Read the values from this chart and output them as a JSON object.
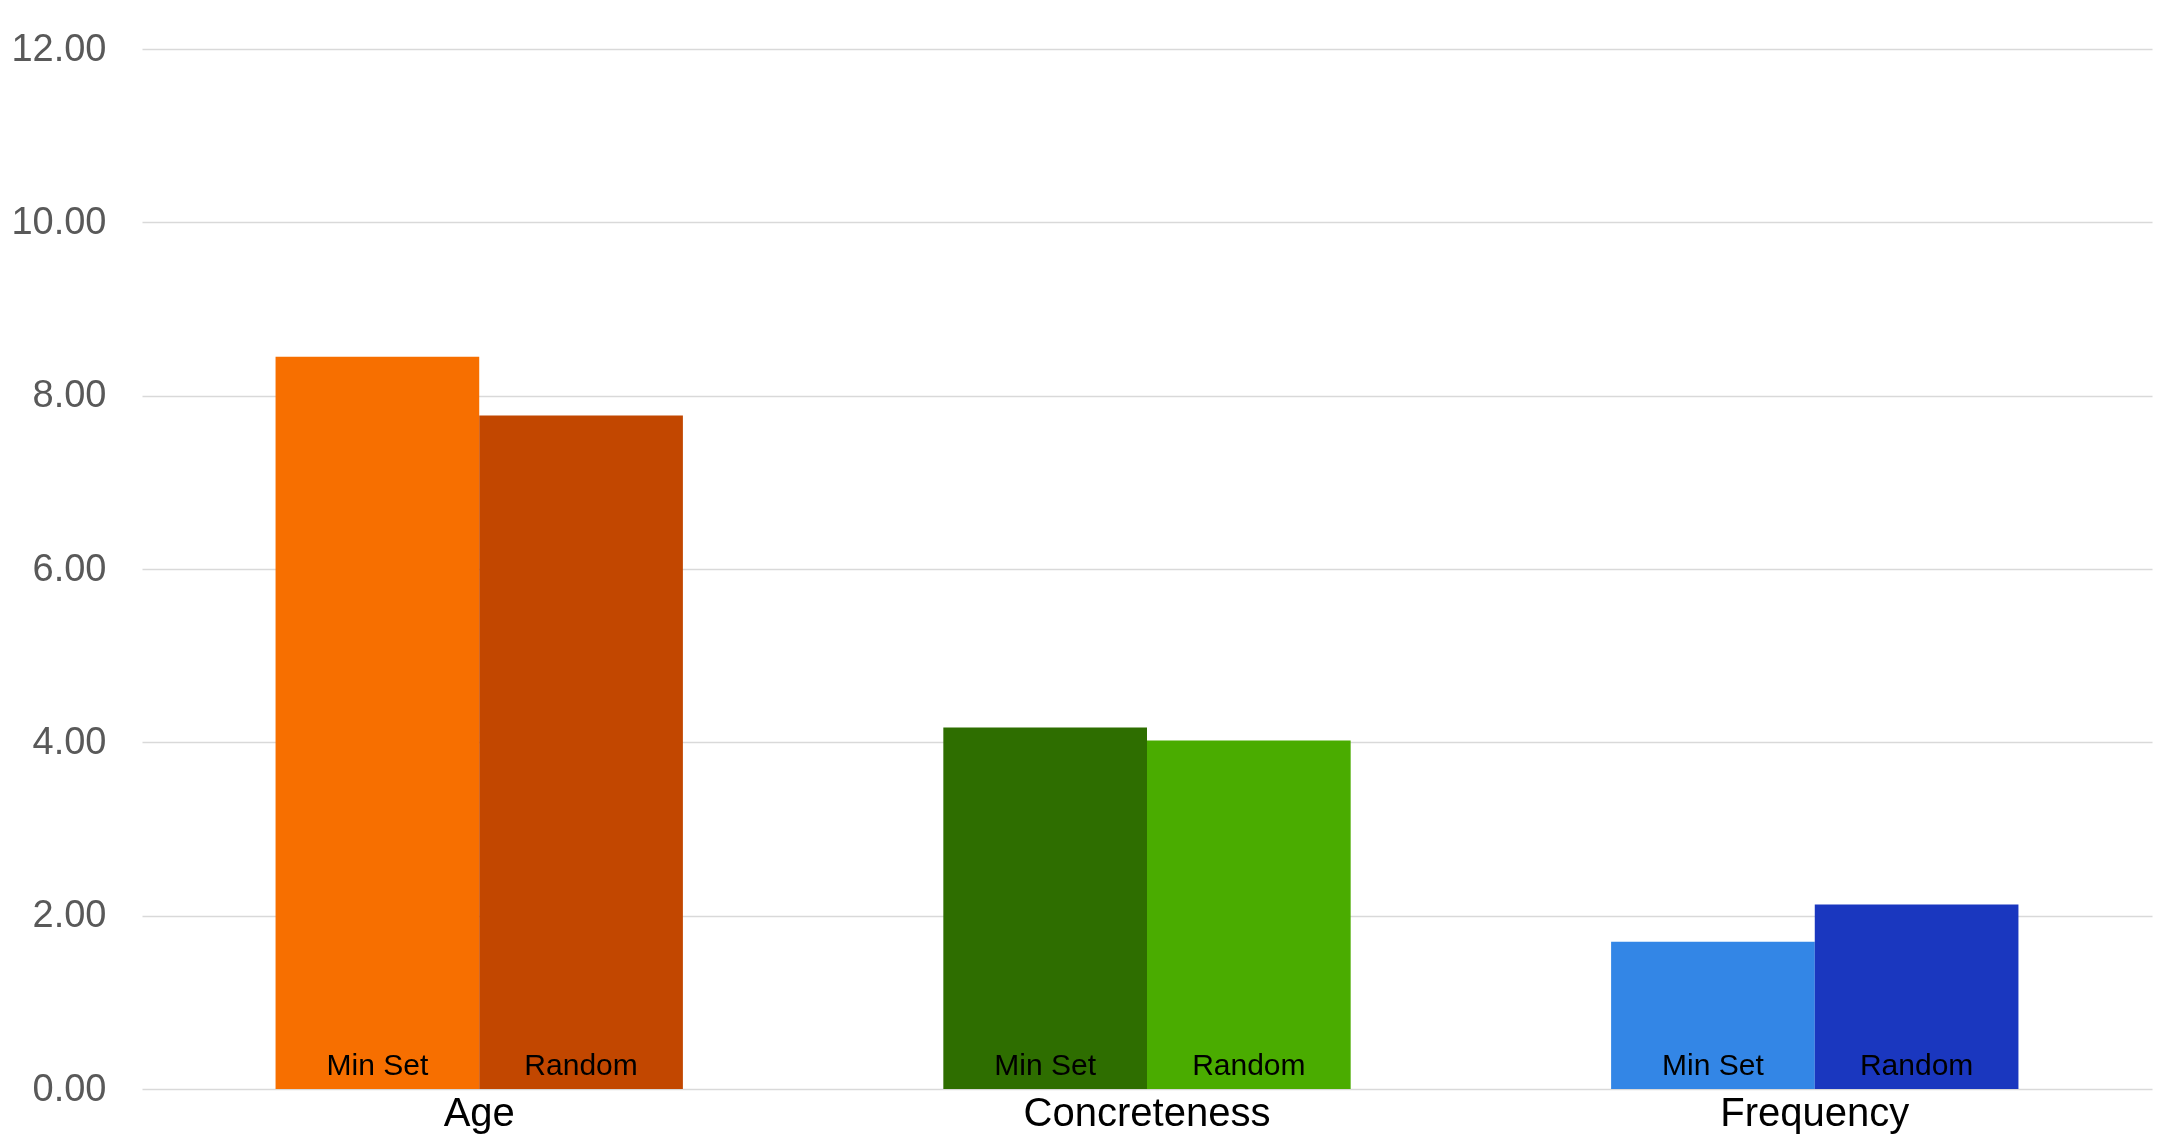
{
  "chart_data": {
    "type": "bar",
    "categories": [
      "Age",
      "Concreteness",
      "Frequency"
    ],
    "series": [
      {
        "name": "Min Set",
        "values": [
          8.45,
          4.17,
          1.7
        ],
        "colors": [
          "#f76f00",
          "#2e6e00",
          "#3386e6"
        ]
      },
      {
        "name": "Random",
        "values": [
          7.77,
          4.02,
          2.13
        ],
        "colors": [
          "#c24700",
          "#4aac00",
          "#1a37bf"
        ]
      }
    ],
    "ylim": [
      0,
      12
    ],
    "yticks": [
      {
        "value": 0,
        "label": "0.00"
      },
      {
        "value": 2,
        "label": "2.00"
      },
      {
        "value": 4,
        "label": "4.00"
      },
      {
        "value": 6,
        "label": "6.00"
      },
      {
        "value": 8,
        "label": "8.00"
      },
      {
        "value": 10,
        "label": "10.00"
      },
      {
        "value": 12,
        "label": "12.00"
      }
    ],
    "grid": "y"
  }
}
